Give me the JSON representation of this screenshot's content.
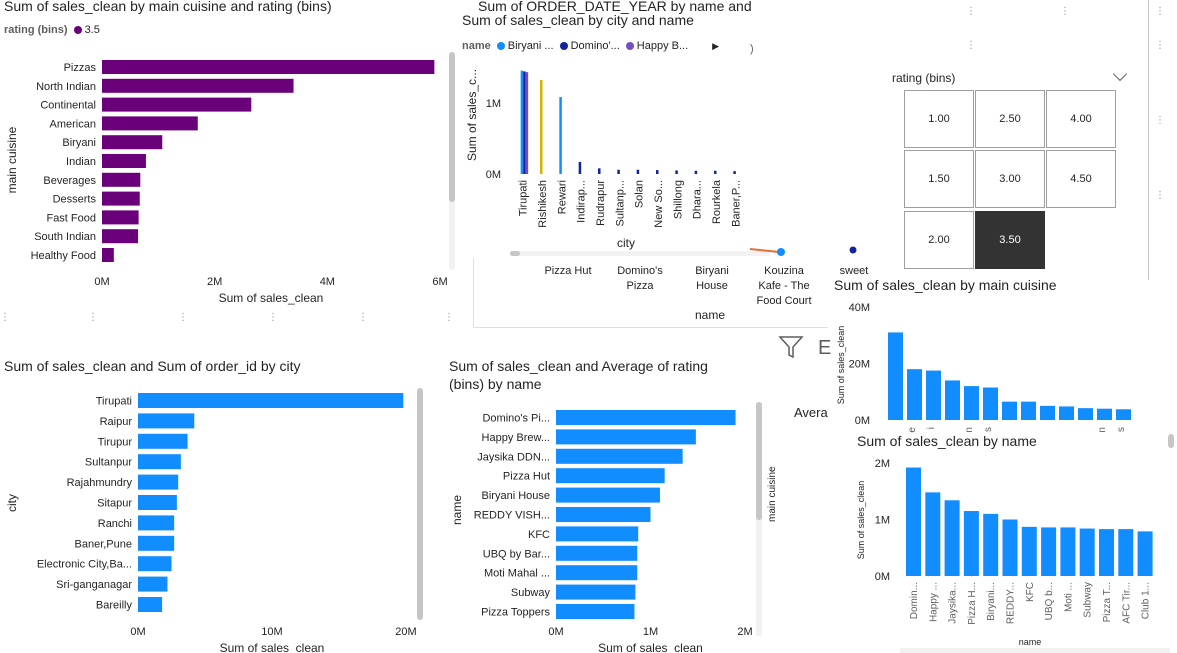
{
  "colors": {
    "purple": "#6b007b",
    "blue": "#118dff",
    "navy": "#12239e",
    "violet": "#744ec2",
    "gold": "#d4b200",
    "orange": "#e66c37",
    "slicer_selected": "#333333"
  },
  "cuisine_chart": {
    "title": "Sum of sales_clean by main cuisine and rating (bins)",
    "legend_title": "rating (bins)",
    "legend_item": "3.5",
    "ylabel": "main cuisine",
    "xlabel": "Sum of sales_clean",
    "x_ticks": [
      "0M",
      "2M",
      "4M",
      "6M"
    ]
  },
  "order_year_chart": {
    "title_line1": "Sum of ORDER_DATE_YEAR by name and",
    "title_line2": "Sum of sales_clean by city and name",
    "legend_title": "name",
    "legend_items": [
      "Biryani ...",
      "Domino'...",
      "Happy B..."
    ],
    "ylabel": "Sum of sales_c...",
    "xlabel": "city",
    "y_ticks": [
      "1M",
      "0M"
    ]
  },
  "name_axis_visual": {
    "labels": [
      "Pizza Hut",
      "Domino's Pizza",
      "Biryani House",
      "Kouzina Kafe - The Food Court",
      "sweet"
    ],
    "xlabel": "name"
  },
  "rating_slicer": {
    "title": "rating (bins)",
    "options": [
      "1.00",
      "2.50",
      "4.00",
      "1.50",
      "3.00",
      "4.50",
      "2.00",
      "3.50"
    ],
    "selected": "3.50"
  },
  "city_chart": {
    "title": "Sum of sales_clean and Sum of order_id by city",
    "ylabel": "city",
    "xlabel": "Sum of sales_clean",
    "x_ticks": [
      "0M",
      "10M",
      "20M"
    ]
  },
  "rating_name_chart": {
    "title_line1": "Sum of sales_clean and Average of rating",
    "title_line2": "(bins) by name",
    "ylabel": "name",
    "xlabel": "Sum of sales_clean",
    "x_ticks": [
      "0M",
      "1M",
      "2M"
    ],
    "side_label": "main cuisine",
    "cut_label": "Avera"
  },
  "main_cuisine_chart": {
    "title": "Sum of sales_clean by main cuisine",
    "ylabel": "Sum of sales_clean",
    "y_ticks": [
      "40M",
      "20M",
      "0M"
    ],
    "cut_labels": [
      "e",
      "i",
      "n",
      "s",
      "n",
      "s"
    ]
  },
  "name_chart": {
    "title": "Sum of sales_clean by name",
    "ylabel": "Sum of sales_clean",
    "xlabel": "name",
    "y_ticks": [
      "2M",
      "1M",
      "0M"
    ]
  },
  "chart_data": [
    {
      "type": "bar",
      "orientation": "horizontal",
      "title": "Sum of sales_clean by main cuisine and rating (bins)",
      "categories": [
        "Pizzas",
        "North Indian",
        "Continental",
        "American",
        "Biryani",
        "Indian",
        "Beverages",
        "Desserts",
        "Fast Food",
        "South Indian",
        "Healthy Food"
      ],
      "series": [
        {
          "name": "3.5",
          "values": [
            5900000,
            3400000,
            2650000,
            1700000,
            1070000,
            780000,
            680000,
            670000,
            650000,
            640000,
            210000
          ]
        }
      ],
      "xlabel": "Sum of sales_clean",
      "ylabel": "main cuisine",
      "xlim": [
        0,
        6000000
      ]
    },
    {
      "type": "bar",
      "title": "Sum of ORDER_DATE_YEAR by name and Sum of sales_clean by city and name",
      "categories": [
        "Tirupati",
        "Rishikesh",
        "Rewari",
        "Indirap...",
        "Rudrapur",
        "Sultanp...",
        "Solan",
        "New So...",
        "Shillong",
        "Dhara...",
        "Rourkela",
        "Baner,P..."
      ],
      "series": [
        {
          "name": "Biryani ...",
          "values": [
            1450000,
            0,
            1080000,
            0,
            0,
            0,
            0,
            0,
            0,
            0,
            0,
            0
          ]
        },
        {
          "name": "Domino'...",
          "values": [
            1440000,
            0,
            0,
            170000,
            80000,
            60000,
            60000,
            55000,
            50000,
            45000,
            45000,
            40000
          ]
        },
        {
          "name": "Happy B...",
          "values": [
            1430000,
            0,
            0,
            0,
            0,
            0,
            0,
            0,
            0,
            0,
            0,
            0
          ]
        },
        {
          "name": "",
          "values": [
            0,
            1320000,
            0,
            0,
            0,
            0,
            0,
            0,
            0,
            0,
            0,
            0
          ]
        }
      ],
      "xlabel": "city",
      "ylabel": "Sum of sales_c...",
      "ylim": [
        0,
        1600000
      ]
    },
    {
      "type": "bar",
      "orientation": "horizontal",
      "title": "Sum of sales_clean and Sum of order_id by city",
      "categories": [
        "Tirupati",
        "Raipur",
        "Tirupur",
        "Sultanpur",
        "Rajahmundry",
        "Sitapur",
        "Ranchi",
        "Baner,Pune",
        "Electronic City,Ba...",
        "Sri-ganganagar",
        "Bareilly"
      ],
      "values": [
        19800000,
        4200000,
        3700000,
        3200000,
        3000000,
        2900000,
        2700000,
        2700000,
        2500000,
        2200000,
        1800000
      ],
      "xlabel": "Sum of sales_clean",
      "ylabel": "city",
      "xlim": [
        0,
        20000000
      ]
    },
    {
      "type": "bar",
      "orientation": "horizontal",
      "title": "Sum of sales_clean and Average of rating (bins) by name",
      "categories": [
        "Domino's Pi...",
        "Happy Brew...",
        "Jaysika DDN...",
        "Pizza Hut",
        "Biryani House",
        "REDDY VISH...",
        "KFC",
        "UBQ by Bar...",
        "Moti Mahal ...",
        "Subway",
        "Pizza Toppers"
      ],
      "values": [
        1900000,
        1480000,
        1340000,
        1150000,
        1100000,
        1000000,
        870000,
        860000,
        860000,
        840000,
        830000
      ],
      "xlabel": "Sum of sales_clean",
      "ylabel": "name",
      "xlim": [
        0,
        2000000
      ]
    },
    {
      "type": "bar",
      "title": "Sum of sales_clean by main cuisine",
      "values": [
        31000000,
        18000000,
        17500000,
        14000000,
        12000000,
        11500000,
        6500000,
        6500000,
        5000000,
        4800000,
        4200000,
        4000000,
        3800000
      ],
      "ylabel": "Sum of sales_clean",
      "ylim": [
        0,
        40000000
      ]
    },
    {
      "type": "bar",
      "title": "Sum of sales_clean by name",
      "categories": [
        "Domin...",
        "Happy ...",
        "Jaysika...",
        "Pizza H...",
        "Biryani...",
        "REDDY...",
        "KFC",
        "UBQ b...",
        "Moti ...",
        "Subway",
        "Pizza T...",
        "AFC Tir...",
        "Club 1..."
      ],
      "values": [
        1920000,
        1480000,
        1340000,
        1150000,
        1100000,
        1000000,
        870000,
        860000,
        860000,
        840000,
        830000,
        830000,
        790000
      ],
      "xlabel": "name",
      "ylabel": "Sum of sales_clean",
      "ylim": [
        0,
        2000000
      ]
    }
  ]
}
